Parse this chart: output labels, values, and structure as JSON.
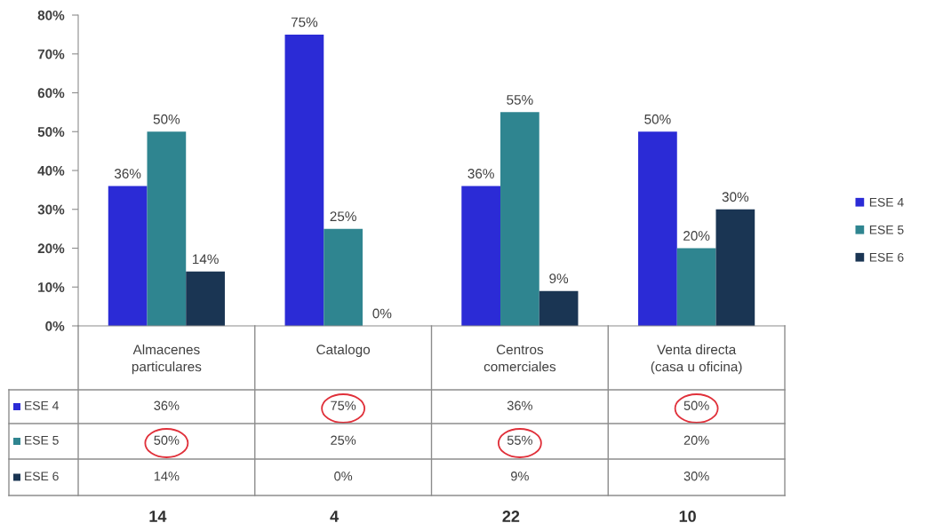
{
  "chart_data": {
    "type": "bar",
    "categories": [
      "Almacenes\nparticulares",
      "Catalogo",
      "Centros\ncomerciales",
      "Venta directa\n(casa u oficina)"
    ],
    "series": [
      {
        "name": "ESE 4",
        "color": "#2b2bd6",
        "values": [
          36,
          75,
          36,
          50
        ],
        "value_labels": [
          "36%",
          "75%",
          "36%",
          "50%"
        ]
      },
      {
        "name": "ESE 5",
        "color": "#2f8590",
        "values": [
          50,
          25,
          55,
          20
        ],
        "value_labels": [
          "50%",
          "25%",
          "55%",
          "20%"
        ]
      },
      {
        "name": "ESE 6",
        "color": "#1a3553",
        "values": [
          14,
          0,
          9,
          30
        ],
        "value_labels": [
          "14%",
          "0%",
          "9%",
          "30%"
        ]
      }
    ],
    "ylim": [
      0,
      80
    ],
    "yticks": [
      {
        "value": 0,
        "label": "0%"
      },
      {
        "value": 10,
        "label": "10%"
      },
      {
        "value": 20,
        "label": "20%"
      },
      {
        "value": 30,
        "label": "30%"
      },
      {
        "value": 40,
        "label": "40%"
      },
      {
        "value": 50,
        "label": "50%"
      },
      {
        "value": 60,
        "label": "60%"
      },
      {
        "value": 70,
        "label": "70%"
      },
      {
        "value": 80,
        "label": "80%"
      }
    ],
    "grid": false,
    "legend": "right",
    "annotations": [
      "14",
      "4",
      "22",
      "10"
    ]
  }
}
